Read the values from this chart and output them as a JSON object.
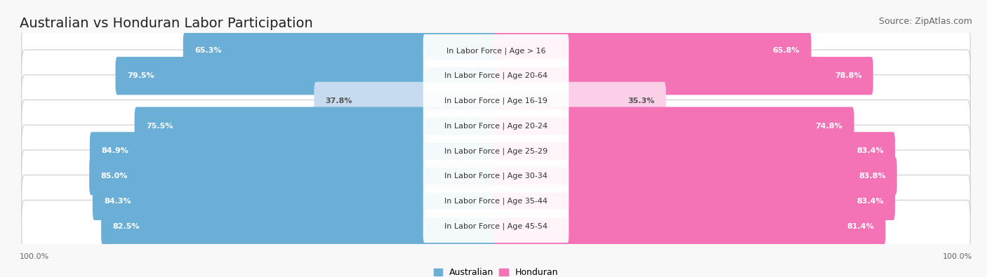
{
  "title": "Australian vs Honduran Labor Participation",
  "source": "Source: ZipAtlas.com",
  "categories": [
    "In Labor Force | Age > 16",
    "In Labor Force | Age 20-64",
    "In Labor Force | Age 16-19",
    "In Labor Force | Age 20-24",
    "In Labor Force | Age 25-29",
    "In Labor Force | Age 30-34",
    "In Labor Force | Age 35-44",
    "In Labor Force | Age 45-54"
  ],
  "australian_values": [
    65.3,
    79.5,
    37.8,
    75.5,
    84.9,
    85.0,
    84.3,
    82.5
  ],
  "honduran_values": [
    65.8,
    78.8,
    35.3,
    74.8,
    83.4,
    83.8,
    83.4,
    81.4
  ],
  "australian_color": "#6BAED6",
  "australian_color_light": "#C6DBEF",
  "honduran_color": "#F472B6",
  "honduran_color_light": "#FBCFE8",
  "row_bg_color": "#E8E8E8",
  "bar_bg_color": "#F0F0F0",
  "background_color": "#F8F8F8",
  "max_value": 100.0,
  "bar_height": 0.72,
  "title_fontsize": 14,
  "source_fontsize": 9,
  "label_fontsize": 8,
  "value_fontsize": 8,
  "legend_fontsize": 9,
  "axis_label_fontsize": 8
}
